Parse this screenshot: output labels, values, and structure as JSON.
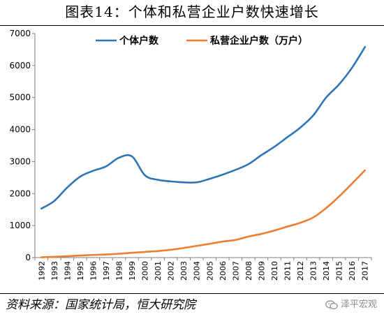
{
  "title": "图表14：个体和私营企业户数快速增长",
  "source": "资料来源：国家统计局，恒大研究院",
  "watermark": "泽平宏观",
  "chart_data": {
    "type": "line",
    "title": "图表14：个体和私营企业户数快速增长",
    "categories": [
      "1992",
      "1993",
      "1994",
      "1995",
      "1996",
      "1997",
      "1998",
      "1999",
      "2000",
      "2001",
      "2002",
      "2003",
      "2004",
      "2005",
      "2006",
      "2007",
      "2008",
      "2009",
      "2010",
      "2011",
      "2012",
      "2013",
      "2014",
      "2015",
      "2016",
      "2017"
    ],
    "y_ticks": [
      0,
      1000,
      2000,
      3000,
      4000,
      5000,
      6000,
      7000
    ],
    "ylim": [
      0,
      7000
    ],
    "grid": false,
    "legend_position": "top-center",
    "series": [
      {
        "name": "个体户数",
        "color": "#2E75B6",
        "values": [
          1530,
          1770,
          2190,
          2530,
          2710,
          2850,
          3120,
          3160,
          2570,
          2430,
          2380,
          2350,
          2350,
          2460,
          2590,
          2740,
          2920,
          3200,
          3460,
          3760,
          4060,
          4440,
          5000,
          5410,
          5930,
          6580
        ]
      },
      {
        "name": "私营企业户数（万户）",
        "color": "#ED7D31",
        "values": [
          10,
          24,
          43,
          65,
          82,
          96,
          120,
          151,
          176,
          203,
          244,
          300,
          365,
          430,
          500,
          550,
          657,
          740,
          845,
          967,
          1086,
          1254,
          1546,
          1908,
          2310,
          2726
        ]
      }
    ]
  }
}
